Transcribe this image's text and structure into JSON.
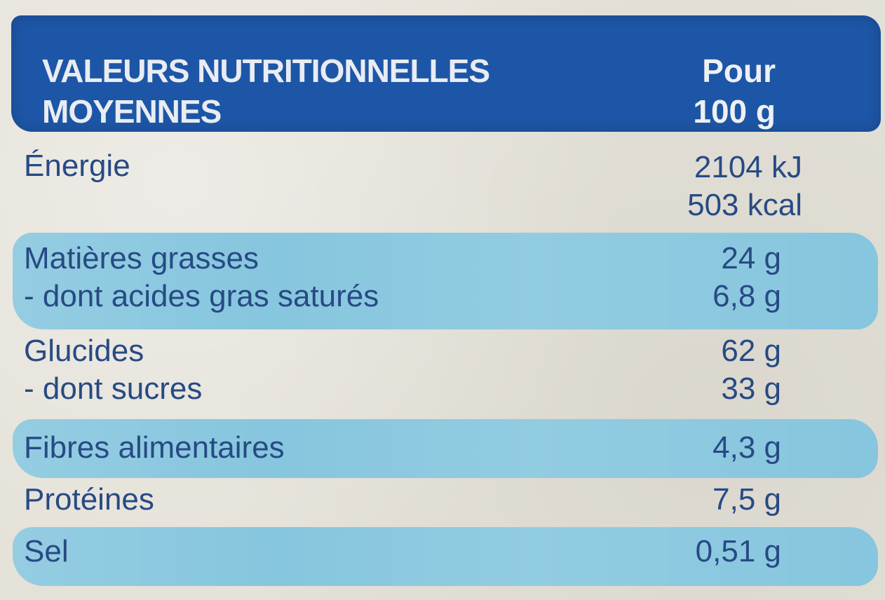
{
  "header": {
    "title_line1": "VALEURS NUTRITIONNELLES",
    "title_line2": "MOYENNES",
    "column_line1": "Pour",
    "column_line2": "100 g"
  },
  "colors": {
    "header_bg": "#1d56a6",
    "band_bg": "#86c6de",
    "text": "#274a84"
  },
  "rows": [
    {
      "label": "Énergie",
      "value_line1": "2104 kJ",
      "value_line2": "503 kcal"
    },
    {
      "label": "Matières grasses",
      "value": "24 g"
    },
    {
      "label": "- dont acides gras saturés",
      "value": "6,8 g"
    },
    {
      "label": "Glucides",
      "value": "62 g"
    },
    {
      "label": "- dont sucres",
      "value": "33 g"
    },
    {
      "label": "Fibres alimentaires",
      "value": "4,3 g"
    },
    {
      "label": "Protéines",
      "value": "7,5 g"
    },
    {
      "label": "Sel",
      "value": "0,51 g"
    }
  ]
}
